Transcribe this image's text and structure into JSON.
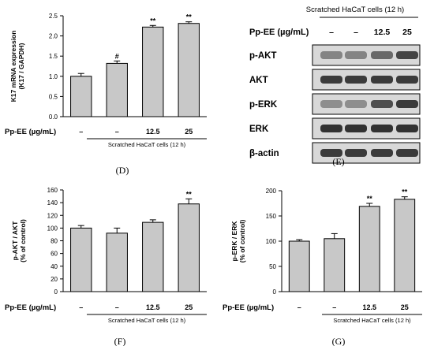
{
  "colors": {
    "bar_fill": "#c8c8c8",
    "axis": "#000000",
    "blot_band": "#202020",
    "blot_bg": "#d8d8d8"
  },
  "treatment_label": "Pp-EE (µg/mL)",
  "group_label": "Scratched HaCaT cells (12 h)",
  "chart_data": [
    {
      "panel": "(D)",
      "type": "bar",
      "categories": [
        "–",
        "–",
        "12.5",
        "25"
      ],
      "values": [
        1.0,
        1.32,
        2.22,
        2.31
      ],
      "errors": [
        0.07,
        0.06,
        0.04,
        0.04
      ],
      "annotations": [
        "",
        "#",
        "**",
        "**"
      ],
      "ylabel_line1": "K17 mRNA expression",
      "ylabel_line2": "(K17 / GAPDH)",
      "ylim": [
        0,
        2.5
      ],
      "yticks": [
        "0.0",
        "0.5",
        "1.0",
        "1.5",
        "2.0",
        "2.5"
      ],
      "grid": false
    },
    {
      "panel": "(F)",
      "type": "bar",
      "categories": [
        "–",
        "–",
        "12.5",
        "25"
      ],
      "values": [
        100,
        92,
        109,
        138
      ],
      "errors": [
        4,
        8,
        4,
        8
      ],
      "annotations": [
        "",
        "",
        "",
        "**"
      ],
      "ylabel_line1": "p-AKT / AKT",
      "ylabel_line2": "(% of control)",
      "ylim": [
        0,
        160
      ],
      "yticks": [
        "0",
        "20",
        "40",
        "60",
        "80",
        "100",
        "120",
        "140",
        "160"
      ],
      "grid": false
    },
    {
      "panel": "(G)",
      "type": "bar",
      "categories": [
        "–",
        "–",
        "12.5",
        "25"
      ],
      "values": [
        100,
        105,
        169,
        183
      ],
      "errors": [
        3,
        10,
        6,
        5
      ],
      "annotations": [
        "",
        "",
        "**",
        "**"
      ],
      "ylabel_line1": "p-ERK / ERK",
      "ylabel_line2": "(% of control)",
      "ylim": [
        0,
        200
      ],
      "yticks": [
        "0",
        "50",
        "100",
        "150",
        "200"
      ],
      "grid": false
    }
  ],
  "blot": {
    "panel": "(E)",
    "lanes": [
      "–",
      "–",
      "12.5",
      "25"
    ],
    "rows": [
      {
        "label": "p-AKT",
        "intensities": [
          0.45,
          0.45,
          0.6,
          0.8
        ]
      },
      {
        "label": "AKT",
        "intensities": [
          0.85,
          0.85,
          0.85,
          0.85
        ]
      },
      {
        "label": "p-ERK",
        "intensities": [
          0.4,
          0.4,
          0.75,
          0.85
        ]
      },
      {
        "label": "ERK",
        "intensities": [
          0.9,
          0.9,
          0.9,
          0.9
        ]
      },
      {
        "label": "β-actin",
        "intensities": [
          0.85,
          0.85,
          0.85,
          0.85
        ]
      }
    ]
  }
}
